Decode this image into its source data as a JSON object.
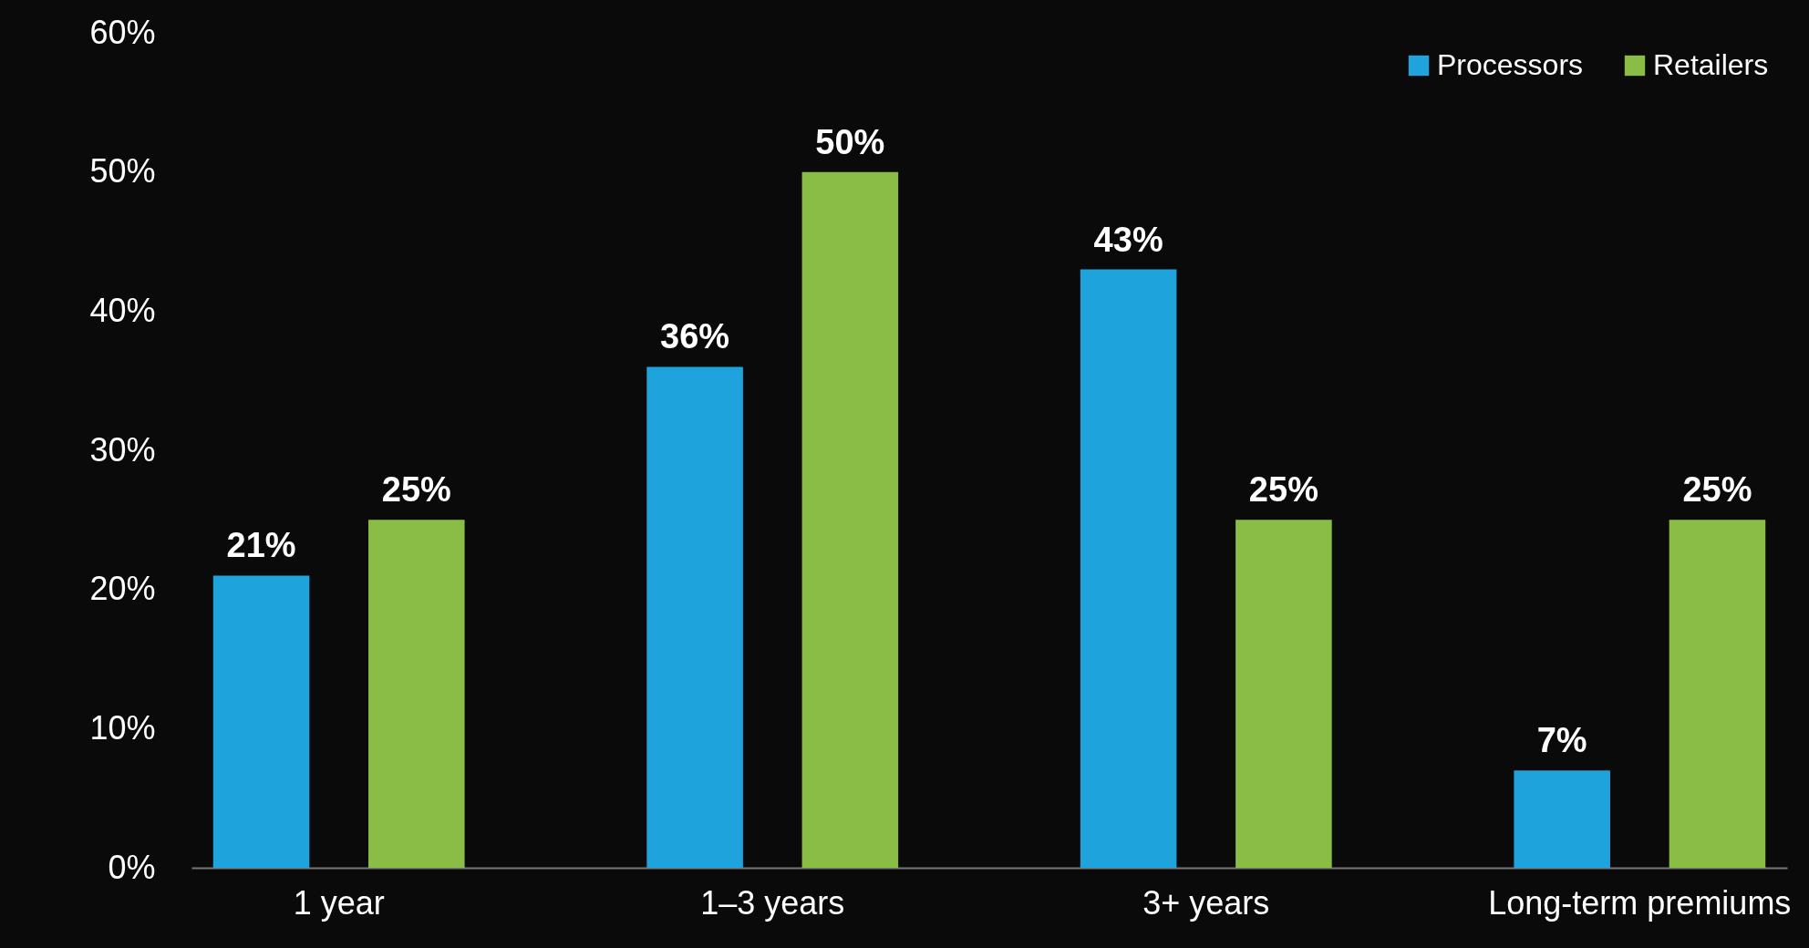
{
  "chart_data": {
    "type": "bar",
    "categories": [
      "1 year",
      "1–3 years",
      "3+ years",
      "Long-term premiums"
    ],
    "series": [
      {
        "name": "Processors",
        "color": "#1fa3dc",
        "values": [
          21,
          36,
          43,
          7
        ],
        "value_labels": [
          "21%",
          "36%",
          "43%",
          "7%"
        ]
      },
      {
        "name": "Retailers",
        "color": "#8abd45",
        "values": [
          25,
          50,
          25,
          25
        ],
        "value_labels": [
          "25%",
          "50%",
          "25%",
          "25%"
        ]
      }
    ],
    "ylim": [
      0,
      60
    ],
    "yticks": [
      {
        "value": 0,
        "label": "0%"
      },
      {
        "value": 10,
        "label": "10%"
      },
      {
        "value": 20,
        "label": "20%"
      },
      {
        "value": 30,
        "label": "30%"
      },
      {
        "value": 40,
        "label": "40%"
      },
      {
        "value": 50,
        "label": "50%"
      },
      {
        "value": 60,
        "label": "60%"
      }
    ],
    "grid": false,
    "legend": "top right"
  }
}
